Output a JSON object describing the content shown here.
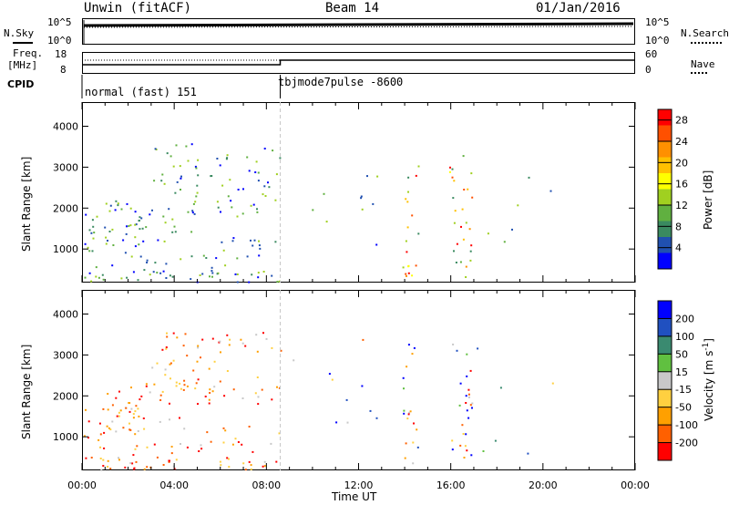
{
  "header": {
    "site": "Unwin (fitACF)",
    "beam": "Beam 14",
    "date": "01/Jan/2016"
  },
  "noise_panel": {
    "left_label": "N.Sky",
    "right_label": "N.Search",
    "ticks_left": [
      "10^5",
      "10^0"
    ],
    "ticks_right": [
      "10^5",
      "10^0"
    ]
  },
  "freq_panel": {
    "left_label_1": "Freq.",
    "left_label_2": "[MHz]",
    "ticks_left": [
      "18",
      "8"
    ],
    "right_label": "Nave",
    "ticks_right": [
      "60",
      "0"
    ]
  },
  "cpid": {
    "label": "CPID",
    "segments": [
      "normal (fast) 151",
      "tbjmode7pulse -8600"
    ]
  },
  "chart_data": [
    {
      "type": "heatmap",
      "ylabel": "Slant Range [km]",
      "xlabel": "Time UT",
      "x_ticks": [
        "00:00",
        "04:00",
        "08:00",
        "12:00",
        "16:00",
        "20:00",
        "00:00"
      ],
      "x_range_hours": [
        0,
        24
      ],
      "y_ticks": [
        1000,
        2000,
        3000,
        4000
      ],
      "ylim": [
        180,
        4590
      ],
      "colorbar": {
        "label": "Power [dB]",
        "ticks": [
          4,
          8,
          12,
          16,
          20,
          24,
          28
        ],
        "range": [
          0,
          30
        ],
        "colors": [
          "#0000ff",
          "#2050b0",
          "#3a8a60",
          "#60b040",
          "#a0d020",
          "#ffff00",
          "#ffc000",
          "#ff9000",
          "#ff5000",
          "#ff0000"
        ]
      }
    },
    {
      "type": "heatmap",
      "ylabel": "Slant Range [km]",
      "xlabel": "Time UT",
      "x_ticks": [
        "00:00",
        "04:00",
        "08:00",
        "12:00",
        "16:00",
        "20:00",
        "00:00"
      ],
      "x_range_hours": [
        0,
        24
      ],
      "y_ticks": [
        1000,
        2000,
        3000,
        4000
      ],
      "ylim": [
        180,
        4590
      ],
      "colorbar": {
        "label": "Velocity [m s",
        "label_sup": "-1",
        "label_end": "]",
        "ticks": [
          200,
          100,
          50,
          15,
          -15,
          -50,
          -100,
          -200
        ],
        "colors": [
          "#0000ff",
          "#2050c0",
          "#3a8a70",
          "#60c040",
          "#c8c8c8",
          "#ffd040",
          "#ffa000",
          "#ff6000",
          "#ff0000"
        ]
      }
    }
  ]
}
